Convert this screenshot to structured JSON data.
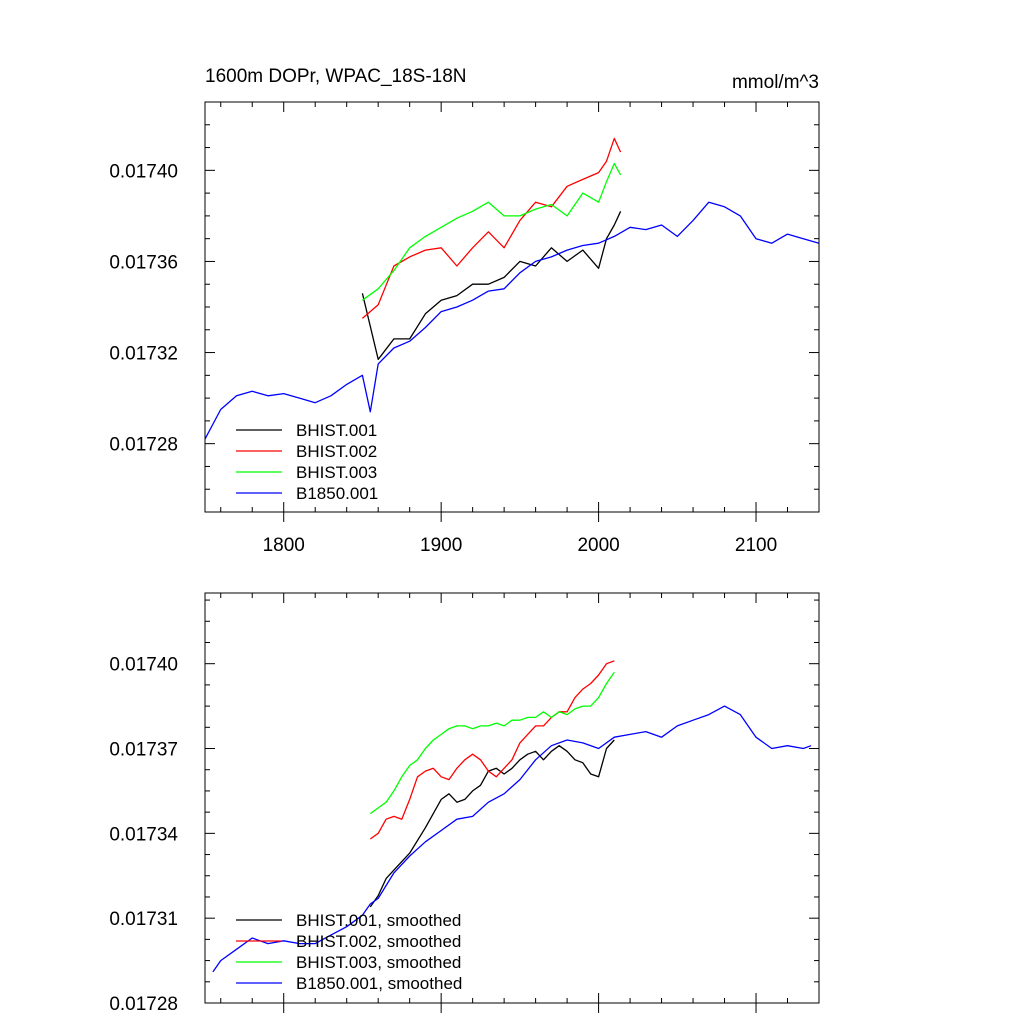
{
  "chart_data": [
    {
      "type": "line",
      "title": "1600m DOPr, WPAC_18S-18N",
      "units": "mmol/m^3",
      "xlim": [
        1750,
        2140
      ],
      "ylim": [
        0.01725,
        0.01743
      ],
      "xticks": [
        1800,
        1900,
        2000,
        2100
      ],
      "xtick_labels": [
        "1800",
        "1900",
        "2000",
        "2100"
      ],
      "yticks": [
        0.01728,
        0.01732,
        0.01736,
        0.0174
      ],
      "ytick_labels": [
        "0.01728",
        "0.01732",
        "0.01736",
        "0.01740"
      ],
      "legend_position": "bottom-left",
      "series": [
        {
          "name": "BHIST.001",
          "color": "#000000",
          "x": [
            1850,
            1860,
            1870,
            1880,
            1890,
            1900,
            1910,
            1920,
            1930,
            1940,
            1950,
            1960,
            1970,
            1980,
            1990,
            2000,
            2005,
            2010,
            2014
          ],
          "y": [
            0.017346,
            0.017317,
            0.017326,
            0.017326,
            0.017337,
            0.017343,
            0.017345,
            0.01735,
            0.01735,
            0.017353,
            0.01736,
            0.017358,
            0.017366,
            0.01736,
            0.017365,
            0.017357,
            0.01737,
            0.017376,
            0.017382
          ]
        },
        {
          "name": "BHIST.002",
          "color": "#ff0000",
          "x": [
            1850,
            1860,
            1870,
            1880,
            1890,
            1900,
            1910,
            1920,
            1930,
            1940,
            1950,
            1960,
            1970,
            1980,
            1990,
            2000,
            2005,
            2010,
            2014
          ],
          "y": [
            0.017335,
            0.017341,
            0.017358,
            0.017362,
            0.017365,
            0.017366,
            0.017358,
            0.017366,
            0.017373,
            0.017366,
            0.017378,
            0.017386,
            0.017384,
            0.017393,
            0.017396,
            0.017399,
            0.017404,
            0.017414,
            0.017408
          ]
        },
        {
          "name": "BHIST.003",
          "color": "#00ff00",
          "x": [
            1850,
            1860,
            1870,
            1880,
            1890,
            1900,
            1910,
            1920,
            1930,
            1940,
            1950,
            1960,
            1970,
            1980,
            1990,
            2000,
            2005,
            2010,
            2014
          ],
          "y": [
            0.017343,
            0.017348,
            0.017356,
            0.017366,
            0.017371,
            0.017375,
            0.017379,
            0.017382,
            0.017386,
            0.01738,
            0.01738,
            0.017383,
            0.017385,
            0.01738,
            0.01739,
            0.017386,
            0.017395,
            0.017403,
            0.017398
          ]
        },
        {
          "name": "B1850.001",
          "color": "#0000ff",
          "x": [
            1750,
            1760,
            1770,
            1780,
            1790,
            1800,
            1810,
            1820,
            1830,
            1840,
            1850,
            1855,
            1860,
            1870,
            1880,
            1890,
            1900,
            1910,
            1920,
            1930,
            1940,
            1950,
            1960,
            1970,
            1980,
            1990,
            2000,
            2010,
            2020,
            2030,
            2040,
            2050,
            2060,
            2070,
            2080,
            2090,
            2100,
            2110,
            2120,
            2130,
            2140
          ],
          "y": [
            0.017282,
            0.017295,
            0.017301,
            0.017303,
            0.017301,
            0.017302,
            0.0173,
            0.017298,
            0.017301,
            0.017306,
            0.01731,
            0.017294,
            0.017315,
            0.017322,
            0.017325,
            0.017331,
            0.017338,
            0.01734,
            0.017343,
            0.017347,
            0.017348,
            0.017355,
            0.01736,
            0.017362,
            0.017365,
            0.017367,
            0.017368,
            0.017371,
            0.017375,
            0.017374,
            0.017376,
            0.017371,
            0.017378,
            0.017386,
            0.017384,
            0.01738,
            0.01737,
            0.017368,
            0.017372,
            0.01737,
            0.017368
          ]
        }
      ]
    },
    {
      "type": "line",
      "title": "",
      "xlim": [
        1750,
        2140
      ],
      "ylim": [
        0.01728,
        0.017425
      ],
      "xticks": [
        1800,
        1900,
        2000,
        2100
      ],
      "yticks": [
        0.01728,
        0.01731,
        0.01734,
        0.01737,
        0.0174
      ],
      "ytick_labels": [
        "0.01728",
        "0.01731",
        "0.01734",
        "0.01737",
        "0.01740"
      ],
      "legend_position": "bottom-left",
      "series": [
        {
          "name": "BHIST.001, smoothed",
          "color": "#000000",
          "x": [
            1855,
            1860,
            1865,
            1870,
            1880,
            1890,
            1895,
            1900,
            1905,
            1910,
            1915,
            1920,
            1925,
            1930,
            1935,
            1940,
            1945,
            1950,
            1955,
            1960,
            1965,
            1970,
            1975,
            1980,
            1985,
            1990,
            1995,
            2000,
            2005,
            2010
          ],
          "y": [
            0.017314,
            0.017318,
            0.017324,
            0.017327,
            0.017333,
            0.017342,
            0.017347,
            0.017352,
            0.017354,
            0.017351,
            0.017352,
            0.017355,
            0.017357,
            0.017362,
            0.017363,
            0.017361,
            0.017363,
            0.017366,
            0.017368,
            0.017369,
            0.017366,
            0.017369,
            0.017371,
            0.017369,
            0.017366,
            0.017365,
            0.017361,
            0.01736,
            0.01737,
            0.017373
          ]
        },
        {
          "name": "BHIST.002, smoothed",
          "color": "#ff0000",
          "x": [
            1855,
            1860,
            1865,
            1870,
            1875,
            1880,
            1885,
            1890,
            1895,
            1900,
            1905,
            1910,
            1915,
            1920,
            1925,
            1930,
            1935,
            1940,
            1945,
            1950,
            1955,
            1960,
            1965,
            1970,
            1975,
            1980,
            1985,
            1990,
            1995,
            2000,
            2005,
            2010
          ],
          "y": [
            0.017338,
            0.01734,
            0.017345,
            0.017346,
            0.017345,
            0.017352,
            0.01736,
            0.017362,
            0.017363,
            0.01736,
            0.017359,
            0.017363,
            0.017366,
            0.017368,
            0.017366,
            0.017362,
            0.01736,
            0.017363,
            0.017366,
            0.017372,
            0.017375,
            0.017378,
            0.017378,
            0.017381,
            0.017383,
            0.017383,
            0.017388,
            0.017391,
            0.017393,
            0.017396,
            0.0174,
            0.017401
          ]
        },
        {
          "name": "BHIST.003, smoothed",
          "color": "#00ff00",
          "x": [
            1855,
            1860,
            1865,
            1870,
            1875,
            1880,
            1885,
            1890,
            1895,
            1900,
            1905,
            1910,
            1915,
            1920,
            1925,
            1930,
            1935,
            1940,
            1945,
            1950,
            1955,
            1960,
            1965,
            1970,
            1975,
            1980,
            1985,
            1990,
            1995,
            2000,
            2005,
            2010
          ],
          "y": [
            0.017347,
            0.017349,
            0.017351,
            0.017355,
            0.01736,
            0.017364,
            0.017366,
            0.01737,
            0.017373,
            0.017375,
            0.017377,
            0.017378,
            0.017378,
            0.017377,
            0.017378,
            0.017378,
            0.017379,
            0.017378,
            0.01738,
            0.01738,
            0.017381,
            0.017381,
            0.017383,
            0.017381,
            0.017383,
            0.017382,
            0.017384,
            0.017385,
            0.017385,
            0.017388,
            0.017393,
            0.017397
          ]
        },
        {
          "name": "B1850.001, smoothed",
          "color": "#0000ff",
          "x": [
            1755,
            1760,
            1770,
            1780,
            1790,
            1800,
            1810,
            1820,
            1830,
            1840,
            1850,
            1855,
            1860,
            1870,
            1880,
            1890,
            1900,
            1910,
            1920,
            1930,
            1940,
            1950,
            1960,
            1970,
            1980,
            1990,
            2000,
            2010,
            2020,
            2030,
            2040,
            2050,
            2060,
            2070,
            2080,
            2090,
            2100,
            2110,
            2120,
            2130,
            2135
          ],
          "y": [
            0.017291,
            0.017295,
            0.017299,
            0.017303,
            0.017301,
            0.017302,
            0.017301,
            0.017301,
            0.017304,
            0.017307,
            0.017311,
            0.017315,
            0.017317,
            0.017326,
            0.017332,
            0.017337,
            0.017341,
            0.017345,
            0.017346,
            0.017351,
            0.017354,
            0.017359,
            0.017366,
            0.017371,
            0.017373,
            0.017372,
            0.01737,
            0.017374,
            0.017375,
            0.017376,
            0.017374,
            0.017378,
            0.01738,
            0.017382,
            0.017385,
            0.017382,
            0.017374,
            0.01737,
            0.017371,
            0.01737,
            0.017371
          ]
        }
      ]
    }
  ]
}
